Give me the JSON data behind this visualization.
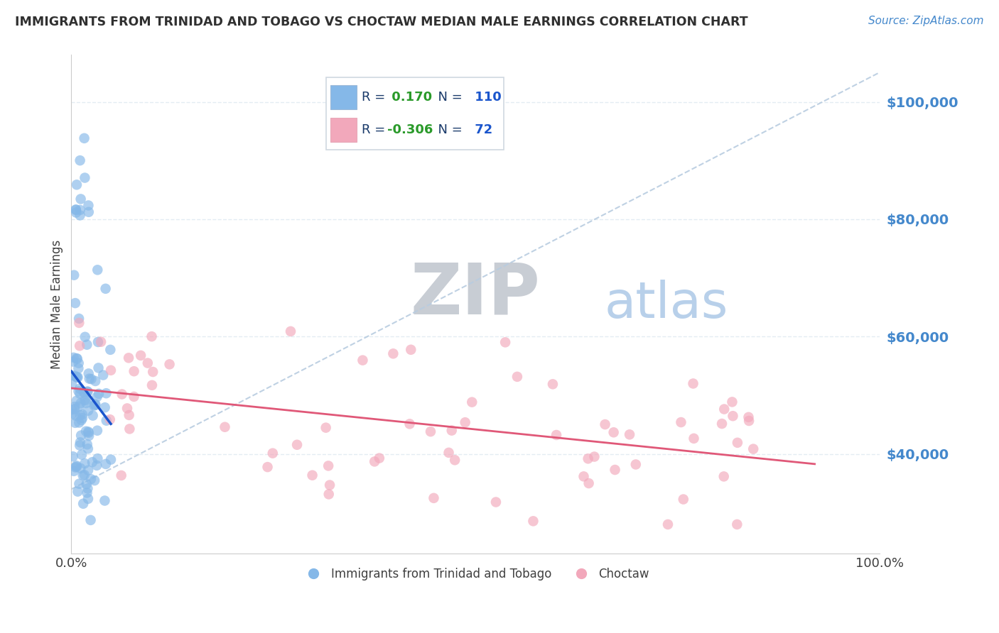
{
  "title": "IMMIGRANTS FROM TRINIDAD AND TOBAGO VS CHOCTAW MEDIAN MALE EARNINGS CORRELATION CHART",
  "source": "Source: ZipAtlas.com",
  "ylabel": "Median Male Earnings",
  "xlim": [
    0.0,
    1.0
  ],
  "ylim": [
    23000,
    108000
  ],
  "yticks": [
    40000,
    60000,
    80000,
    100000
  ],
  "ytick_labels": [
    "$40,000",
    "$60,000",
    "$80,000",
    "$100,000"
  ],
  "xtick_labels": [
    "0.0%",
    "100.0%"
  ],
  "legend_label1": "Immigrants from Trinidad and Tobago",
  "legend_label2": "Choctaw",
  "R1": 0.17,
  "N1": 110,
  "R2": -0.306,
  "N2": 72,
  "blue_color": "#85b8e8",
  "pink_color": "#f2a8bb",
  "blue_line_color": "#1a55cc",
  "pink_line_color": "#e05878",
  "ref_line_color": "#b8cce0",
  "zip_color": "#c8cdd4",
  "atlas_color": "#b8d0ea",
  "background_color": "#ffffff",
  "grid_color": "#dde8f0",
  "title_color": "#303030",
  "source_color": "#4488cc",
  "legend_text_color": "#1a3a6a",
  "legend_R_color": "#2a9a2a",
  "legend_N_color": "#1a55cc",
  "seed": 42
}
